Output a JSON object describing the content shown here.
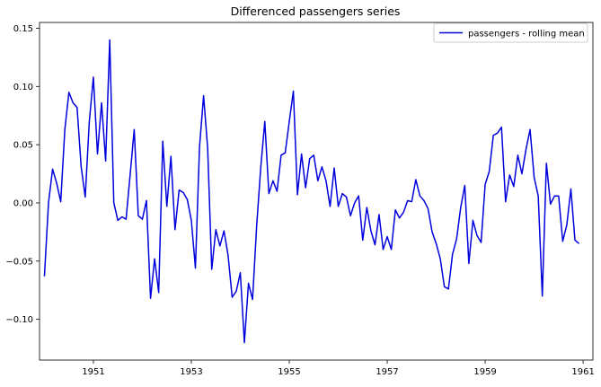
{
  "chart_data": {
    "type": "line",
    "title": "Differenced passengers series",
    "xlabel": "",
    "ylabel": "",
    "xlim": [
      1949.9,
      1961.2
    ],
    "ylim": [
      -0.135,
      0.155
    ],
    "xticks": [
      1951,
      1953,
      1955,
      1957,
      1959,
      1961
    ],
    "xtick_labels": [
      "1951",
      "1953",
      "1955",
      "1957",
      "1959",
      "1961"
    ],
    "yticks": [
      -0.1,
      -0.05,
      0.0,
      0.05,
      0.1,
      0.15
    ],
    "ytick_labels": [
      "−0.10",
      "−0.05",
      "0.00",
      "0.05",
      "0.10",
      "0.15"
    ],
    "grid": false,
    "legend_position": "top-right",
    "series": [
      {
        "name": "passengers - rolling mean",
        "color": "#0000dd",
        "x_start": 1950.0,
        "x_step_months": 1,
        "values": [
          -0.063,
          0.0,
          0.029,
          0.017,
          0.001,
          0.063,
          0.095,
          0.086,
          0.082,
          0.031,
          0.005,
          0.07,
          0.108,
          0.042,
          0.086,
          0.036,
          0.14,
          0.0,
          -0.015,
          -0.012,
          -0.014,
          0.024,
          0.063,
          -0.011,
          -0.014,
          0.002,
          -0.082,
          -0.048,
          -0.077,
          0.053,
          -0.003,
          0.04,
          -0.023,
          0.011,
          0.009,
          0.003,
          -0.015,
          -0.056,
          0.048,
          0.092,
          0.047,
          -0.057,
          -0.023,
          -0.037,
          -0.024,
          -0.045,
          -0.081,
          -0.076,
          -0.06,
          -0.12,
          -0.069,
          -0.083,
          -0.02,
          0.03,
          0.07,
          0.008,
          0.019,
          0.01,
          0.041,
          0.043,
          0.07,
          0.096,
          0.007,
          0.042,
          0.013,
          0.038,
          0.041,
          0.019,
          0.031,
          0.019,
          -0.003,
          0.03,
          -0.003,
          0.008,
          0.005,
          -0.011,
          0.0,
          0.006,
          -0.032,
          -0.004,
          -0.024,
          -0.036,
          -0.01,
          -0.04,
          -0.029,
          -0.04,
          -0.006,
          -0.013,
          -0.008,
          0.002,
          0.001,
          0.02,
          0.006,
          0.002,
          -0.005,
          -0.025,
          -0.035,
          -0.048,
          -0.072,
          -0.074,
          -0.044,
          -0.031,
          -0.004,
          0.015,
          -0.052,
          -0.015,
          -0.028,
          -0.034,
          0.016,
          0.027,
          0.058,
          0.06,
          0.065,
          0.001,
          0.024,
          0.014,
          0.041,
          0.025,
          0.046,
          0.063,
          0.022,
          0.006,
          -0.08,
          0.034,
          -0.001,
          0.006,
          0.006,
          -0.033,
          -0.019,
          0.012,
          -0.032,
          -0.035
        ]
      }
    ]
  }
}
